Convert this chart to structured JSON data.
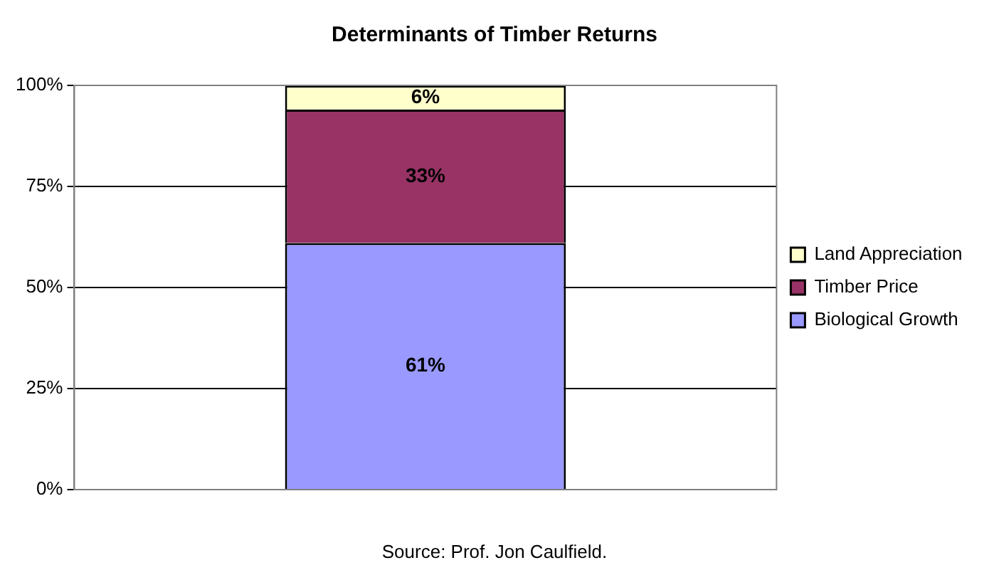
{
  "chart_data": {
    "type": "bar",
    "title": "Determinants of Timber Returns",
    "stacked": true,
    "categories": [
      null
    ],
    "series": [
      {
        "name": "Biological Growth",
        "color": "#9999ff",
        "values": [
          61
        ],
        "value_labels": [
          "61%"
        ]
      },
      {
        "name": "Timber Price",
        "color": "#993366",
        "values": [
          33
        ],
        "value_labels": [
          "33%"
        ]
      },
      {
        "name": "Land Appreciation",
        "color": "#ffffcc",
        "values": [
          6
        ],
        "value_labels": [
          "6%"
        ]
      }
    ],
    "ylim": [
      0,
      100
    ],
    "yticks": [
      {
        "value": 0,
        "label": "0%"
      },
      {
        "value": 25,
        "label": "25%"
      },
      {
        "value": 50,
        "label": "50%"
      },
      {
        "value": 75,
        "label": "75%"
      },
      {
        "value": 100,
        "label": "100%"
      }
    ],
    "grid": "y",
    "legend": "right",
    "annotations": [
      "Source: Prof. Jon Caulfield."
    ]
  }
}
